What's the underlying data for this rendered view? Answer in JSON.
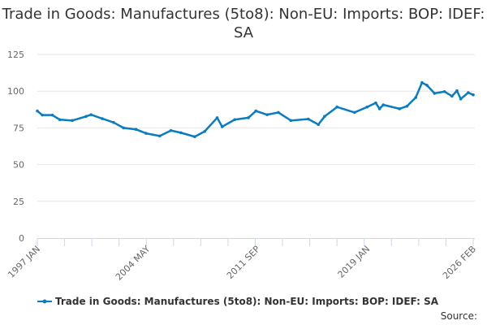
{
  "chart_data": {
    "type": "line",
    "title": "Trade in Goods: Manufactures (5to8): Non-EU: Imports: BOP: IDEF: SA",
    "xlabel": "",
    "ylabel": "",
    "ylim": [
      0,
      125
    ],
    "yticks": [
      0,
      25,
      50,
      75,
      100,
      125
    ],
    "xlim": [
      "1997-01",
      "2026-02"
    ],
    "xtick_labels": [
      "1997 JAN",
      "2004 MAY",
      "2011 SEP",
      "2019 JAN",
      "2026 FEB"
    ],
    "xtick_dates": [
      "1997-01",
      "2004-05",
      "2011-09",
      "2019-01",
      "2026-02"
    ],
    "grid": true,
    "legend_placement": "bottom",
    "series_color": "#0a7cc1",
    "series": [
      {
        "name": "Trade in Goods: Manufactures (5to8): Non-EU: Imports: BOP: IDEF: SA",
        "x": [
          "1997-01",
          "1997-05",
          "1998-01",
          "1998-07",
          "1999-05",
          "2000-04",
          "2000-08",
          "2001-05",
          "2002-02",
          "2002-10",
          "2003-08",
          "2004-04",
          "2005-03",
          "2005-12",
          "2006-08",
          "2007-07",
          "2008-03",
          "2009-01",
          "2009-05",
          "2010-03",
          "2011-02",
          "2011-08",
          "2012-05",
          "2013-02",
          "2013-12",
          "2015-02",
          "2015-10",
          "2016-03",
          "2017-01",
          "2018-03",
          "2019-01",
          "2019-08",
          "2019-11",
          "2020-02",
          "2021-03",
          "2021-09",
          "2022-04",
          "2022-09",
          "2023-01",
          "2023-07",
          "2024-03",
          "2024-09",
          "2025-01",
          "2025-04",
          "2025-10",
          "2026-02"
        ],
        "values": [
          86.5,
          83.7,
          83.7,
          80.6,
          80,
          82.8,
          84,
          81.3,
          78.7,
          75,
          74,
          71.3,
          69.5,
          73.2,
          71.7,
          69,
          72.6,
          81.9,
          75.8,
          80.6,
          81.9,
          86.5,
          84,
          85.5,
          80,
          81,
          77.3,
          82.8,
          89.2,
          85.5,
          89.2,
          92,
          88,
          90.7,
          88,
          89.8,
          95.7,
          105.8,
          104,
          98.5,
          99.7,
          96.6,
          100.3,
          94.7,
          99,
          97.5
        ]
      }
    ],
    "source_label": "Source:"
  }
}
